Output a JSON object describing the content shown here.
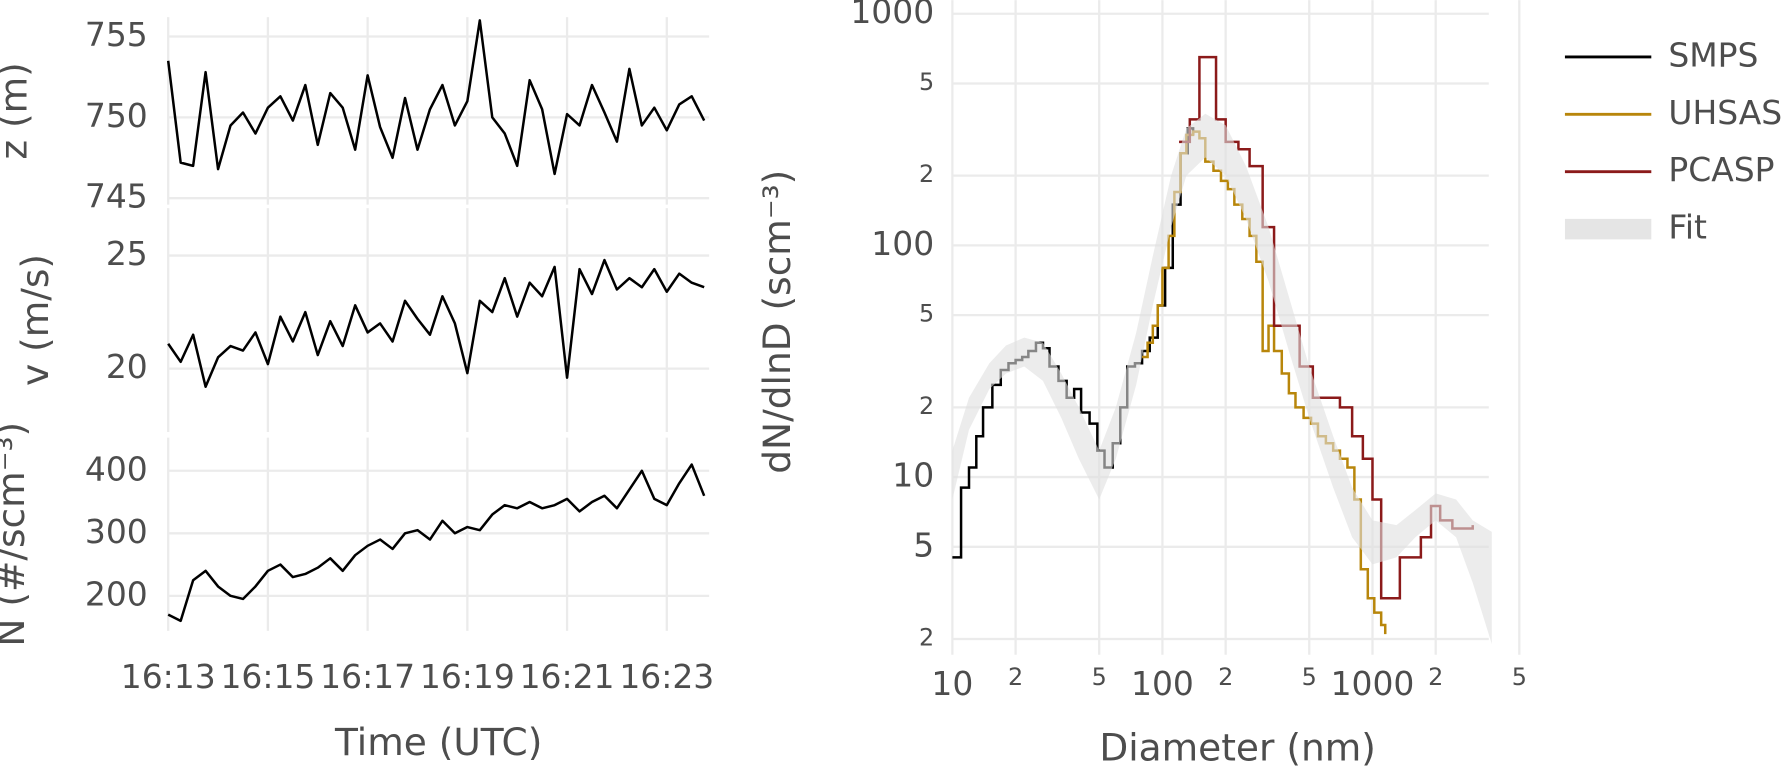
{
  "chart_data": [
    {
      "type": "line",
      "ylabel": "z (m)",
      "color": "#000000",
      "x": [
        13.0,
        13.25,
        13.5,
        13.75,
        14.0,
        14.25,
        14.5,
        14.75,
        15.0,
        15.25,
        15.5,
        15.75,
        16.0,
        16.25,
        16.5,
        16.75,
        17.0,
        17.25,
        17.5,
        17.75,
        18.0,
        18.25,
        18.5,
        18.75,
        19.0,
        19.25,
        19.5,
        19.75,
        20.0,
        20.25,
        20.5,
        20.75,
        21.0,
        21.25,
        21.5,
        21.75,
        22.0,
        22.25,
        22.5,
        22.75,
        23.0,
        23.25,
        23.5,
        23.75
      ],
      "values": [
        753.5,
        747.2,
        747.0,
        752.8,
        746.8,
        749.5,
        750.3,
        749.0,
        750.6,
        751.3,
        749.8,
        752.0,
        748.3,
        751.5,
        750.6,
        748.0,
        752.6,
        749.4,
        747.5,
        751.2,
        748.0,
        750.5,
        752.0,
        749.5,
        751.0,
        756.0,
        750.0,
        749.0,
        747.0,
        752.3,
        750.5,
        746.5,
        750.2,
        749.5,
        752.0,
        750.3,
        748.5,
        753.0,
        749.5,
        750.6,
        749.2,
        750.8,
        751.3,
        749.8
      ],
      "xlim": [
        13,
        23.85
      ],
      "ylim": [
        744.6,
        756.2
      ],
      "yticks": [
        745,
        750,
        755
      ],
      "grid": true
    },
    {
      "type": "line",
      "ylabel": "v (m/s)",
      "color": "#000000",
      "x": [
        13.0,
        13.25,
        13.5,
        13.75,
        14.0,
        14.25,
        14.5,
        14.75,
        15.0,
        15.25,
        15.5,
        15.75,
        16.0,
        16.25,
        16.5,
        16.75,
        17.0,
        17.25,
        17.5,
        17.75,
        18.0,
        18.25,
        18.5,
        18.75,
        19.0,
        19.25,
        19.5,
        19.75,
        20.0,
        20.25,
        20.5,
        20.75,
        21.0,
        21.25,
        21.5,
        21.75,
        22.0,
        22.25,
        22.5,
        22.75,
        23.0,
        23.25,
        23.5,
        23.75
      ],
      "values": [
        21.1,
        20.3,
        21.5,
        19.2,
        20.5,
        21.0,
        20.8,
        21.6,
        20.2,
        22.3,
        21.2,
        22.5,
        20.6,
        22.1,
        21.0,
        22.8,
        21.6,
        22.0,
        21.2,
        23.0,
        22.2,
        21.5,
        23.2,
        22.0,
        19.8,
        23.0,
        22.5,
        24.0,
        22.3,
        23.8,
        23.2,
        24.5,
        19.6,
        24.4,
        23.3,
        24.8,
        23.5,
        24.0,
        23.6,
        24.4,
        23.4,
        24.2,
        23.8,
        23.6
      ],
      "xlim": [
        13,
        23.85
      ],
      "ylim": [
        17.2,
        27.1
      ],
      "yticks": [
        20,
        25
      ],
      "grid": true
    },
    {
      "type": "line",
      "ylabel": "N (#/scm⁻³)",
      "xlabel": "Time (UTC)",
      "color": "#000000",
      "x": [
        13.0,
        13.25,
        13.5,
        13.75,
        14.0,
        14.25,
        14.5,
        14.75,
        15.0,
        15.25,
        15.5,
        15.75,
        16.0,
        16.25,
        16.5,
        16.75,
        17.0,
        17.25,
        17.5,
        17.75,
        18.0,
        18.25,
        18.5,
        18.75,
        19.0,
        19.25,
        19.5,
        19.75,
        20.0,
        20.25,
        20.5,
        20.75,
        21.0,
        21.25,
        21.5,
        21.75,
        22.0,
        22.25,
        22.5,
        22.75,
        23.0,
        23.25,
        23.5,
        23.75
      ],
      "values": [
        170,
        160,
        225,
        240,
        215,
        200,
        195,
        215,
        240,
        250,
        230,
        235,
        245,
        260,
        240,
        265,
        280,
        290,
        275,
        300,
        305,
        290,
        320,
        300,
        310,
        305,
        330,
        345,
        340,
        350,
        340,
        345,
        355,
        335,
        350,
        360,
        340,
        370,
        400,
        355,
        345,
        380,
        410,
        360
      ],
      "xlim": [
        13,
        23.85
      ],
      "ylim": [
        144,
        453
      ],
      "xticks": [
        {
          "value": 13,
          "label": "16:13"
        },
        {
          "value": 15,
          "label": "16:15"
        },
        {
          "value": 17,
          "label": "16:17"
        },
        {
          "value": 19,
          "label": "16:19"
        },
        {
          "value": 21,
          "label": "16:21"
        },
        {
          "value": 23,
          "label": "16:23"
        }
      ],
      "yticks": [
        200,
        300,
        400
      ],
      "grid": true
    },
    {
      "type": "step",
      "xlabel": "Diameter (nm)",
      "ylabel": "dN/dlnD (scm⁻³)",
      "xscale": "log",
      "yscale": "log",
      "legend": "right",
      "grid": true,
      "xlim": [
        10,
        5200
      ],
      "ylim": [
        1.75,
        1000
      ],
      "xticks": [
        10,
        {
          "value": 20,
          "label": "2"
        },
        {
          "value": 50,
          "label": "5"
        },
        100,
        {
          "value": 200,
          "label": "2"
        },
        {
          "value": 500,
          "label": "5"
        },
        1000,
        {
          "value": 2000,
          "label": "2"
        },
        {
          "value": 5000,
          "label": "5"
        }
      ],
      "yticks": [
        {
          "value": 2,
          "label": "2"
        },
        5,
        10,
        {
          "value": 20,
          "label": "2"
        },
        {
          "value": 50,
          "label": "5"
        },
        100,
        {
          "value": 200,
          "label": "2"
        },
        {
          "value": 500,
          "label": "5"
        },
        1000
      ],
      "series": [
        {
          "name": "SMPS",
          "color": "#000000",
          "x": [
            10,
            11,
            12,
            13,
            14,
            15.5,
            17,
            18.5,
            20,
            21.5,
            23,
            25,
            27,
            29,
            32,
            35,
            38,
            41,
            45,
            49,
            53,
            58,
            63,
            68,
            74,
            80,
            87,
            95,
            103,
            112,
            122,
            132,
            140
          ],
          "values": [
            4.5,
            9,
            11,
            15,
            20,
            25,
            29,
            31,
            32,
            33,
            35,
            38,
            36,
            30,
            26,
            22,
            24,
            19,
            17,
            13,
            11,
            14,
            20,
            30,
            31,
            35,
            40,
            55,
            80,
            150,
            250,
            320,
            300
          ]
        },
        {
          "name": "UHSAS",
          "color": "#b8860b",
          "x": [
            80,
            85,
            90,
            95,
            100,
            107,
            114,
            122,
            130,
            140,
            150,
            160,
            175,
            190,
            205,
            220,
            240,
            260,
            280,
            300,
            320,
            340,
            370,
            400,
            430,
            470,
            510,
            550,
            600,
            650,
            700,
            760,
            820,
            880,
            950,
            1020,
            1100,
            1150
          ],
          "values": [
            33,
            38,
            45,
            55,
            80,
            110,
            170,
            250,
            300,
            310,
            290,
            230,
            210,
            190,
            175,
            150,
            130,
            110,
            85,
            35,
            45,
            35,
            28,
            23,
            20,
            18,
            17,
            15,
            14,
            13,
            12,
            11,
            8,
            4,
            3,
            2.6,
            2.3,
            2.1
          ]
        },
        {
          "name": "PCASP",
          "color": "#8b1a1a",
          "x": [
            120,
            135,
            150,
            165,
            180,
            200,
            230,
            260,
            300,
            340,
            390,
            450,
            520,
            600,
            700,
            800,
            900,
            1000,
            1100,
            1200,
            1350,
            1500,
            1700,
            1900,
            2100,
            2400,
            2700,
            3000
          ],
          "values": [
            280,
            350,
            650,
            650,
            350,
            280,
            260,
            220,
            120,
            45,
            45,
            30,
            22,
            22,
            20,
            15,
            12,
            8,
            3.0,
            3.0,
            4.5,
            4.5,
            5.5,
            7.5,
            6.5,
            6.0,
            6.0,
            6.2
          ]
        },
        {
          "name": "Fit",
          "color": "#e0e0e0",
          "x": [
            10,
            12,
            15,
            18,
            22,
            27,
            33,
            40,
            50,
            60,
            75,
            90,
            110,
            130,
            160,
            200,
            250,
            320,
            400,
            500,
            650,
            800,
            1000,
            1300,
            1600,
            2000,
            2500,
            3000,
            3700
          ],
          "lower": [
            8,
            16,
            24,
            28,
            30,
            26,
            18,
            12,
            8,
            12,
            25,
            55,
            120,
            200,
            240,
            200,
            130,
            70,
            35,
            18,
            9,
            5.5,
            4.2,
            4.5,
            5.5,
            6.5,
            5.5,
            3.5,
            1.9
          ],
          "upper": [
            13,
            22,
            31,
            37,
            40,
            38,
            28,
            20,
            13,
            20,
            42,
            90,
            200,
            320,
            370,
            330,
            220,
            120,
            60,
            30,
            15,
            9,
            6.5,
            6.2,
            7.2,
            8.5,
            8,
            6.5,
            5.8
          ]
        }
      ]
    }
  ]
}
